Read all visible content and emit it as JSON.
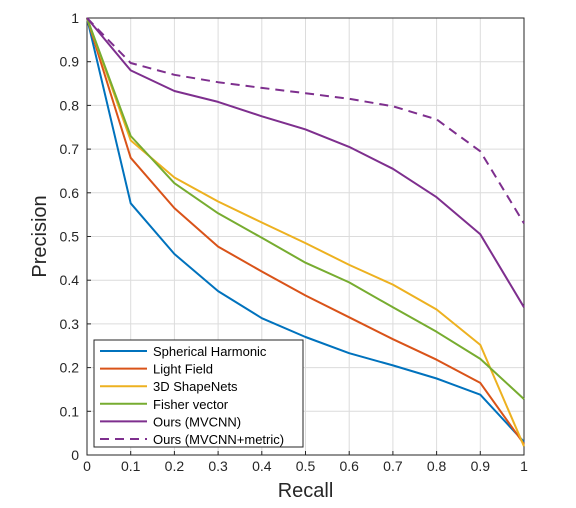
{
  "chart_data": {
    "type": "line",
    "xlabel": "Recall",
    "ylabel": "Precision",
    "xlim": [
      0,
      1
    ],
    "ylim": [
      0,
      1
    ],
    "x_ticks": [
      "0",
      "0.1",
      "0.2",
      "0.3",
      "0.4",
      "0.5",
      "0.6",
      "0.7",
      "0.8",
      "0.9",
      "1"
    ],
    "y_ticks": [
      "0",
      "0.1",
      "0.2",
      "0.3",
      "0.4",
      "0.5",
      "0.6",
      "0.7",
      "0.8",
      "0.9",
      "1"
    ],
    "grid": true,
    "legend_position": "bottom-left",
    "x": [
      0,
      0.1,
      0.2,
      0.3,
      0.4,
      0.5,
      0.6,
      0.7,
      0.8,
      0.9,
      1
    ],
    "series": [
      {
        "name": "Spherical Harmonic",
        "color": "#0072bd",
        "style": "solid",
        "values": [
          1.0,
          0.576,
          0.46,
          0.375,
          0.313,
          0.27,
          0.233,
          0.205,
          0.175,
          0.138,
          0.03
        ]
      },
      {
        "name": "Light Field",
        "color": "#d95319",
        "style": "solid",
        "values": [
          1.0,
          0.68,
          0.565,
          0.477,
          0.42,
          0.365,
          0.315,
          0.265,
          0.218,
          0.165,
          0.025
        ]
      },
      {
        "name": "3D ShapeNets",
        "color": "#edb120",
        "style": "solid",
        "values": [
          1.0,
          0.72,
          0.635,
          0.58,
          0.532,
          0.485,
          0.435,
          0.39,
          0.333,
          0.252,
          0.02
        ]
      },
      {
        "name": "Fisher vector",
        "color": "#77ac30",
        "style": "solid",
        "values": [
          1.0,
          0.73,
          0.622,
          0.553,
          0.497,
          0.44,
          0.395,
          0.338,
          0.282,
          0.22,
          0.128
        ]
      },
      {
        "name": "Ours (MVCNN)",
        "color": "#7e2f8e",
        "style": "solid",
        "values": [
          1.0,
          0.88,
          0.833,
          0.808,
          0.775,
          0.745,
          0.705,
          0.655,
          0.59,
          0.505,
          0.338
        ]
      },
      {
        "name": "Ours (MVCNN+metric)",
        "color": "#7e2f8e",
        "style": "dashed",
        "values": [
          1.0,
          0.897,
          0.87,
          0.853,
          0.84,
          0.828,
          0.815,
          0.798,
          0.768,
          0.695,
          0.53
        ]
      }
    ]
  }
}
